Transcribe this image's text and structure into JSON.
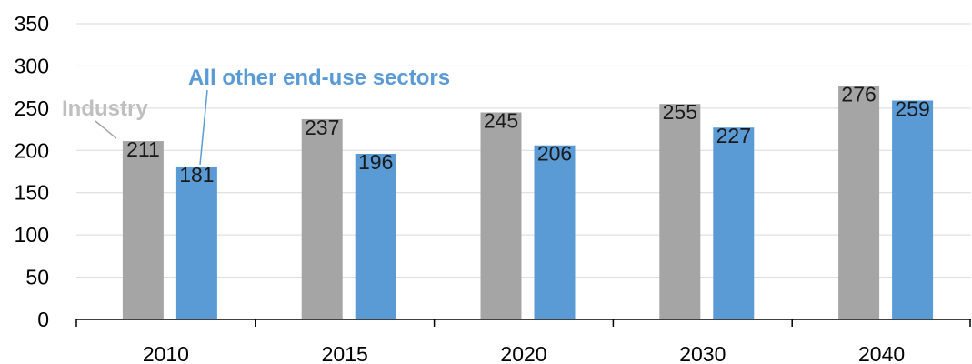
{
  "chart_data": {
    "type": "bar",
    "categories": [
      "2010",
      "2015",
      "2020",
      "2030",
      "2040"
    ],
    "series": [
      {
        "name": "Industry",
        "values": [
          211,
          237,
          245,
          255,
          276
        ],
        "color": "#a5a5a5",
        "label_color": "#bfbfbf"
      },
      {
        "name": "All other end-use sectors",
        "values": [
          181,
          196,
          206,
          227,
          259
        ],
        "color": "#5b9bd5",
        "label_color": "#5b9bd5"
      }
    ],
    "ylim": [
      0,
      350
    ],
    "yticks": [
      0,
      50,
      100,
      150,
      200,
      250,
      300,
      350
    ],
    "grid": true,
    "title": "",
    "xlabel": "",
    "ylabel": ""
  }
}
